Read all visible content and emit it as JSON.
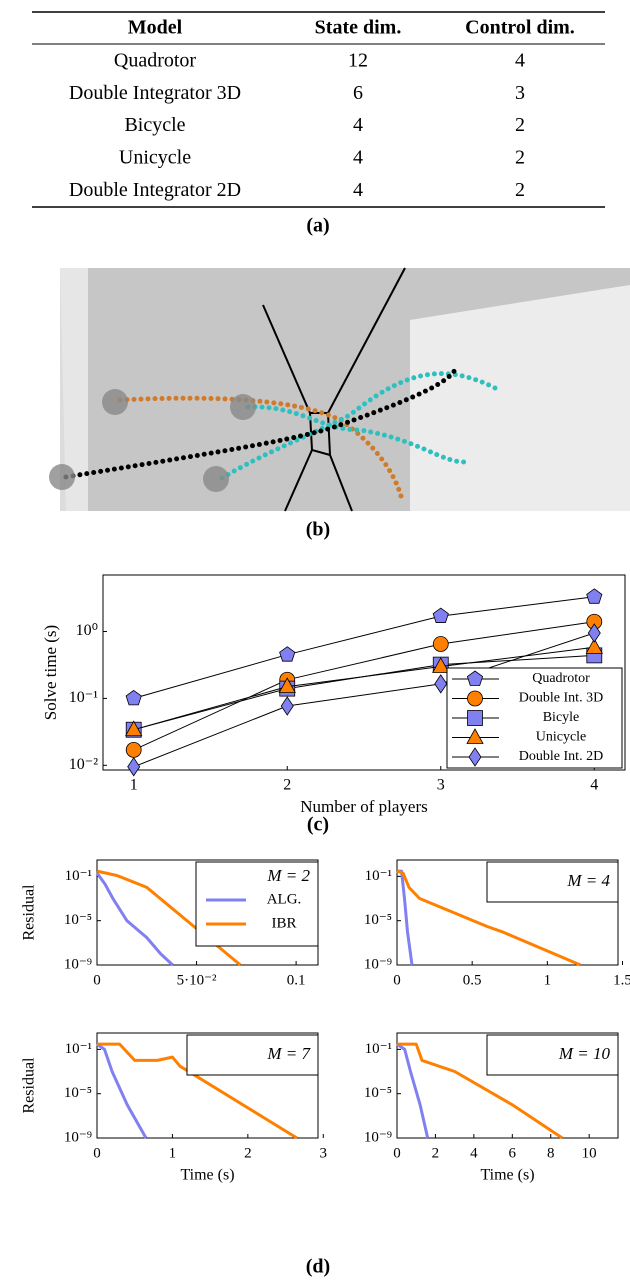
{
  "table": {
    "header": [
      "Model",
      "State dim.",
      "Control dim."
    ],
    "rows": [
      [
        "Quadrotor",
        "12",
        "4"
      ],
      [
        "Double Integrator 3D",
        "6",
        "3"
      ],
      [
        "Bicycle",
        "4",
        "2"
      ],
      [
        "Unicycle",
        "4",
        "2"
      ],
      [
        "Double Integrator 2D",
        "4",
        "2"
      ]
    ]
  },
  "captions": [
    "(a)",
    "(b)",
    "(c)",
    "(d)"
  ],
  "chart_data": [
    {
      "type": "line",
      "x_label": "Number of players",
      "y_label": "Solve time (s)",
      "log_y": true,
      "line_color": "#000000",
      "x": [
        1,
        2,
        3,
        4
      ],
      "xlim": [
        0.8,
        4.2
      ],
      "xticks": [
        1,
        2,
        3,
        4
      ],
      "ylim": [
        0.0085,
        7
      ],
      "yticks": [
        {
          "value": 0.01,
          "label": "10⁻²"
        },
        {
          "value": 0.1,
          "label": "10⁻¹"
        },
        {
          "value": 1,
          "label": "10⁰"
        }
      ],
      "legend_position": "lower right",
      "series": [
        {
          "name": "Quadrotor",
          "marker": "pentagon",
          "color": "#8080f0",
          "values": [
            0.1,
            0.45,
            1.7,
            3.3
          ]
        },
        {
          "name": "Double Int. 3D",
          "marker": "circle",
          "color": "#ff8000",
          "values": [
            0.017,
            0.19,
            0.65,
            1.4
          ]
        },
        {
          "name": "Bicyle",
          "marker": "square",
          "color": "#8080f0",
          "values": [
            0.034,
            0.14,
            0.32,
            0.44
          ]
        },
        {
          "name": "Unicycle",
          "marker": "triangle",
          "color": "#ff8000",
          "values": [
            0.034,
            0.15,
            0.3,
            0.58
          ]
        },
        {
          "name": "Double Int. 2D",
          "marker": "diamond",
          "color": "#8080f0",
          "values": [
            0.0095,
            0.077,
            0.165,
            0.95
          ]
        }
      ]
    },
    {
      "type": "line",
      "y_label": "Residual",
      "log_y": true,
      "annotation": "M = 2",
      "legend_position": "upper right",
      "xlim": [
        0,
        0.111
      ],
      "xticks": [
        0,
        {
          "value": 0.05,
          "label": "5·10⁻²"
        },
        0.1
      ],
      "ylim": [
        1e-09,
        3
      ],
      "yticks": [
        {
          "value": 0.1,
          "label": "10⁻¹"
        },
        {
          "value": 1e-05,
          "label": "10⁻⁵"
        },
        {
          "value": 1e-09,
          "label": "10⁻⁹"
        }
      ],
      "series": [
        {
          "name": "ALG.",
          "color": "#8080f0",
          "x": [
            0,
            0.004,
            0.008,
            0.015,
            0.025,
            0.032,
            0.038
          ],
          "values": [
            0.2,
            0.02,
            0.001,
            1e-05,
            3e-07,
            1e-08,
            1e-09
          ]
        },
        {
          "name": "IBR",
          "color": "#ff8000",
          "x": [
            0,
            0.01,
            0.025,
            0.072
          ],
          "values": [
            0.3,
            0.12,
            0.01,
            1e-09
          ]
        }
      ]
    },
    {
      "type": "line",
      "log_y": true,
      "annotation": "M = 4",
      "xlim": [
        0,
        1.47
      ],
      "xticks": [
        0,
        0.5,
        1,
        1.5
      ],
      "ylim": [
        1e-09,
        3
      ],
      "yticks": [
        {
          "value": 0.1,
          "label": "10⁻¹"
        },
        {
          "value": 1e-05,
          "label": "10⁻⁵"
        },
        {
          "value": 1e-09,
          "label": "10⁻⁹"
        }
      ],
      "series": [
        {
          "color": "#8080f0",
          "x": [
            0,
            0.03,
            0.05,
            0.07,
            0.1
          ],
          "values": [
            0.3,
            0.3,
            0.001,
            1e-06,
            1e-09
          ]
        },
        {
          "color": "#ff8000",
          "x": [
            0,
            0.04,
            0.08,
            0.15,
            0.6,
            0.7,
            1.22
          ],
          "values": [
            0.3,
            0.2,
            0.01,
            0.001,
            3e-06,
            1e-06,
            1e-09
          ]
        }
      ]
    },
    {
      "type": "line",
      "x_label": "Time (s)",
      "y_label": "Residual",
      "log_y": true,
      "annotation": "M = 7",
      "xlim": [
        0,
        2.93
      ],
      "xticks": [
        0,
        1,
        2,
        3
      ],
      "ylim": [
        1e-09,
        3
      ],
      "yticks": [
        {
          "value": 0.1,
          "label": "10⁻¹"
        },
        {
          "value": 1e-05,
          "label": "10⁻⁵"
        },
        {
          "value": 1e-09,
          "label": "10⁻⁹"
        }
      ],
      "series": [
        {
          "color": "#8080f0",
          "x": [
            0,
            0.1,
            0.2,
            0.4,
            0.65
          ],
          "values": [
            0.3,
            0.1,
            0.001,
            1e-06,
            1e-09
          ]
        },
        {
          "color": "#ff8000",
          "x": [
            0,
            0.3,
            0.5,
            0.8,
            1.0,
            1.1,
            2.65
          ],
          "values": [
            0.3,
            0.3,
            0.01,
            0.01,
            0.02,
            0.003,
            1e-09
          ]
        }
      ]
    },
    {
      "type": "line",
      "x_label": "Time (s)",
      "log_y": true,
      "annotation": "M = 10",
      "xlim": [
        0,
        11.5
      ],
      "xticks": [
        0,
        2,
        4,
        6,
        8,
        10
      ],
      "ylim": [
        1e-09,
        3
      ],
      "yticks": [
        {
          "value": 0.1,
          "label": "10⁻¹"
        },
        {
          "value": 1e-05,
          "label": "10⁻⁵"
        },
        {
          "value": 1e-09,
          "label": "10⁻⁹"
        }
      ],
      "series": [
        {
          "color": "#8080f0",
          "x": [
            0,
            0.4,
            0.7,
            1.2,
            1.6
          ],
          "values": [
            0.3,
            0.1,
            0.001,
            1e-06,
            1e-09
          ]
        },
        {
          "color": "#ff8000",
          "x": [
            0,
            1,
            1.3,
            3,
            6,
            8.6
          ],
          "values": [
            0.3,
            0.3,
            0.01,
            0.001,
            1e-06,
            1e-09
          ]
        }
      ]
    }
  ]
}
